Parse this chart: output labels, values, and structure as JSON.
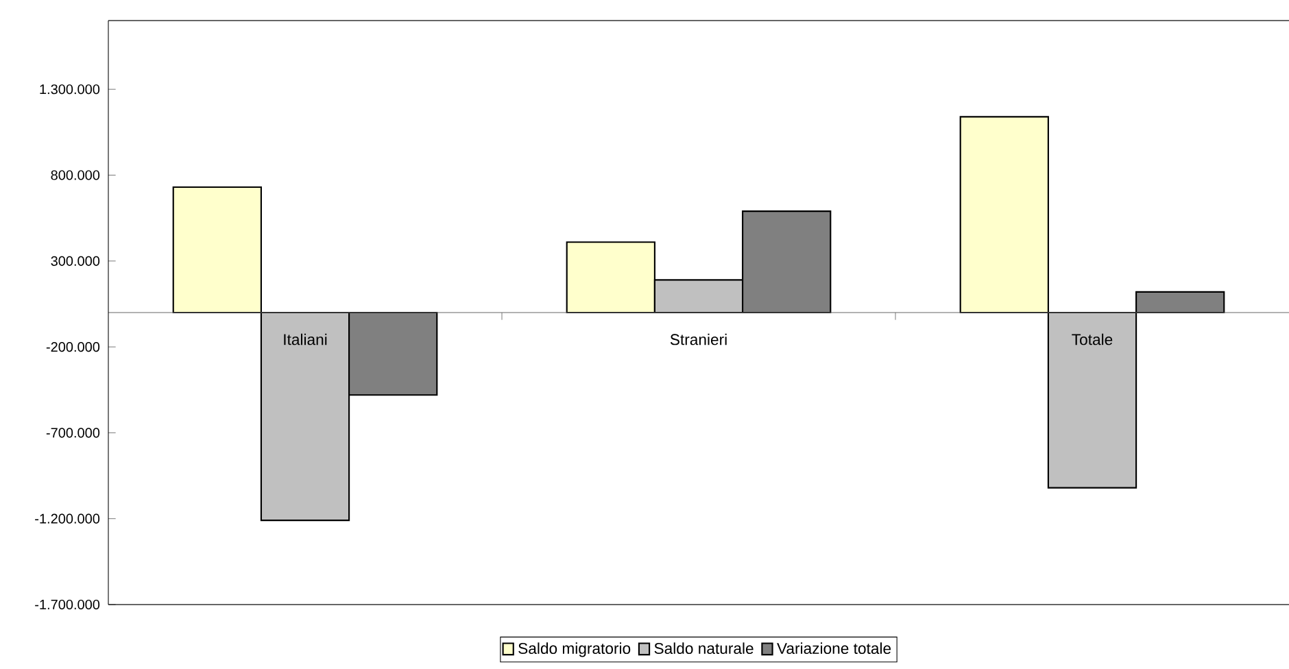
{
  "chart_data": {
    "type": "bar",
    "categories": [
      "Italiani",
      "Stranieri",
      "Totale"
    ],
    "series": [
      {
        "name": "Saldo migratorio",
        "color": "#ffffcc",
        "values": [
          730000,
          410000,
          1140000
        ]
      },
      {
        "name": "Saldo naturale",
        "color": "#c0c0c0",
        "values": [
          -1210000,
          190000,
          -1020000
        ]
      },
      {
        "name": "Variazione totale",
        "color": "#808080",
        "values": [
          -480000,
          590000,
          120000
        ]
      }
    ],
    "ylim": [
      -1700000,
      1700000
    ],
    "yticks": [
      {
        "value": -1700000,
        "label": "-1.700.000"
      },
      {
        "value": -1200000,
        "label": "-1.200.000"
      },
      {
        "value": -700000,
        "label": "-700.000"
      },
      {
        "value": -200000,
        "label": "-200.000"
      },
      {
        "value": 300000,
        "label": "300.000"
      },
      {
        "value": 800000,
        "label": "800.000"
      },
      {
        "value": 1300000,
        "label": "1.300.000"
      }
    ],
    "legend": "bottom"
  }
}
